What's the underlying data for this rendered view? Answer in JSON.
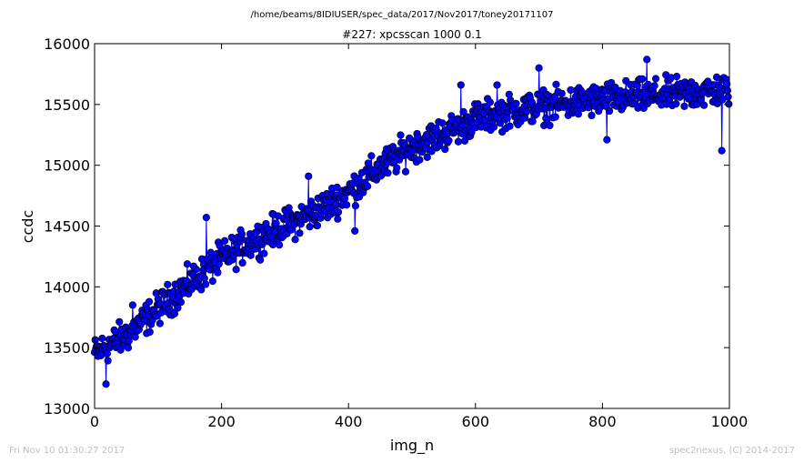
{
  "chart_data": {
    "type": "line",
    "suptitle": "/home/beams/8IDIUSER/spec_data/2017/Nov2017/toney20171107",
    "title": "#227: xpcsscan 1000 0.1",
    "xlabel": "img_n",
    "ylabel": "ccdc",
    "xlim": [
      0,
      1000
    ],
    "ylim": [
      13000,
      16000
    ],
    "xticks": [
      "0",
      "200",
      "400",
      "600",
      "800",
      "1000"
    ],
    "yticks": [
      "13000",
      "13500",
      "14000",
      "14500",
      "15000",
      "15500",
      "16000"
    ],
    "grid": false,
    "marker": "circle",
    "color": "#0000ff",
    "n_points": 1000,
    "trend": [
      [
        0,
        13450
      ],
      [
        50,
        13600
      ],
      [
        100,
        13820
      ],
      [
        150,
        14030
      ],
      [
        200,
        14230
      ],
      [
        250,
        14380
      ],
      [
        300,
        14500
      ],
      [
        350,
        14620
      ],
      [
        400,
        14780
      ],
      [
        450,
        14980
      ],
      [
        500,
        15150
      ],
      [
        550,
        15260
      ],
      [
        600,
        15380
      ],
      [
        650,
        15440
      ],
      [
        700,
        15480
      ],
      [
        750,
        15510
      ],
      [
        800,
        15540
      ],
      [
        850,
        15560
      ],
      [
        900,
        15580
      ],
      [
        950,
        15600
      ],
      [
        1000,
        15620
      ]
    ],
    "noise_amplitude": 130,
    "notable_points": [
      {
        "x": 18,
        "y": 13200
      },
      {
        "x": 60,
        "y": 13850
      },
      {
        "x": 176,
        "y": 14570
      },
      {
        "x": 337,
        "y": 14910
      },
      {
        "x": 410,
        "y": 14460
      },
      {
        "x": 577,
        "y": 15660
      },
      {
        "x": 634,
        "y": 15660
      },
      {
        "x": 700,
        "y": 15800
      },
      {
        "x": 807,
        "y": 15210
      },
      {
        "x": 870,
        "y": 15870
      },
      {
        "x": 988,
        "y": 15120
      }
    ]
  },
  "footer": {
    "timestamp": "Fri Nov 10 01:30:27 2017",
    "credit": "spec2nexus, (C) 2014-2017"
  }
}
